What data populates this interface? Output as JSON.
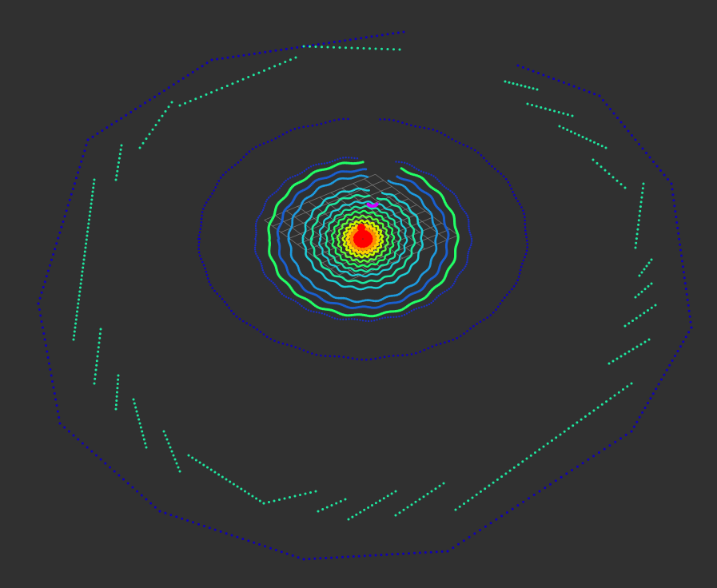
{
  "viewer": {
    "background_color": "#303030",
    "grid_color": "#8a8a8a",
    "colormap": [
      "#ff0000",
      "#ff8c00",
      "#ffd000",
      "#c8ff00",
      "#5cff3c",
      "#22ff66",
      "#1ee8a0",
      "#1ecfd8",
      "#1e9be0",
      "#1a5fd0",
      "#1a2fc8",
      "#1000b8"
    ],
    "robot_marker_color": "#d000ff"
  }
}
